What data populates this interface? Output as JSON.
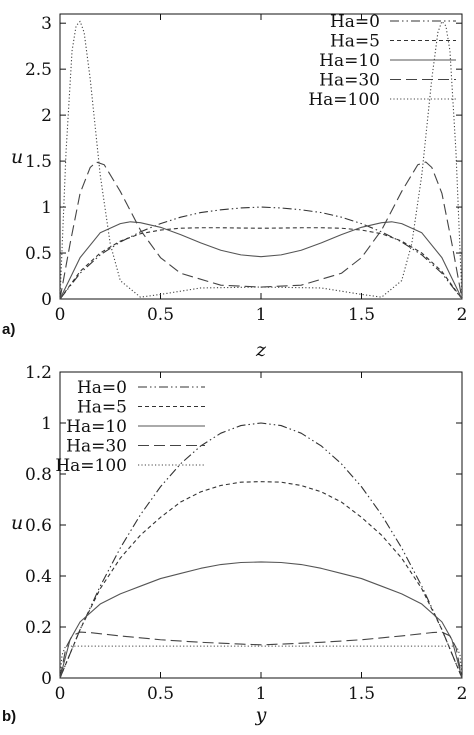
{
  "chart_data": [
    {
      "panel_label": "a)",
      "type": "line",
      "xlabel": "z",
      "ylabel": "u",
      "xlim": [
        0,
        2
      ],
      "ylim": [
        0,
        3.1
      ],
      "xticks": [
        "0",
        "0.5",
        "1",
        "1.5",
        "2"
      ],
      "yticks": [
        "0",
        "0.5",
        "1",
        "1.5",
        "2",
        "2.5",
        "3"
      ],
      "grid": false,
      "legend_position": "top-right",
      "series": [
        {
          "name": "Ha=0",
          "style": "dash-dot-dot",
          "x": [
            0,
            0.1,
            0.2,
            0.3,
            0.4,
            0.5,
            0.6,
            0.7,
            0.8,
            0.9,
            1.0,
            1.1,
            1.2,
            1.3,
            1.4,
            1.5,
            1.6,
            1.7,
            1.8,
            1.9,
            2.0
          ],
          "y": [
            0,
            0.28,
            0.48,
            0.62,
            0.73,
            0.82,
            0.89,
            0.94,
            0.97,
            0.99,
            1.0,
            0.99,
            0.97,
            0.94,
            0.89,
            0.82,
            0.73,
            0.62,
            0.48,
            0.28,
            0
          ]
        },
        {
          "name": "Ha=5",
          "style": "dashed",
          "x": [
            0,
            0.1,
            0.2,
            0.3,
            0.4,
            0.5,
            0.6,
            0.7,
            0.8,
            0.9,
            1.0,
            1.1,
            1.2,
            1.3,
            1.4,
            1.5,
            1.6,
            1.7,
            1.8,
            1.9,
            2.0
          ],
          "y": [
            0,
            0.3,
            0.5,
            0.63,
            0.71,
            0.75,
            0.77,
            0.775,
            0.775,
            0.772,
            0.77,
            0.772,
            0.775,
            0.775,
            0.77,
            0.75,
            0.71,
            0.63,
            0.5,
            0.3,
            0
          ]
        },
        {
          "name": "Ha=10",
          "style": "solid",
          "x": [
            0,
            0.1,
            0.2,
            0.3,
            0.35,
            0.4,
            0.5,
            0.6,
            0.7,
            0.8,
            0.9,
            1.0,
            1.1,
            1.2,
            1.3,
            1.4,
            1.5,
            1.6,
            1.65,
            1.7,
            1.8,
            1.9,
            2.0
          ],
          "y": [
            0,
            0.45,
            0.72,
            0.82,
            0.84,
            0.83,
            0.78,
            0.7,
            0.61,
            0.53,
            0.48,
            0.46,
            0.48,
            0.53,
            0.61,
            0.7,
            0.78,
            0.83,
            0.84,
            0.82,
            0.72,
            0.45,
            0
          ]
        },
        {
          "name": "Ha=30",
          "style": "long-dash",
          "x": [
            0,
            0.05,
            0.1,
            0.15,
            0.18,
            0.22,
            0.3,
            0.4,
            0.5,
            0.6,
            0.8,
            1.0,
            1.2,
            1.4,
            1.5,
            1.6,
            1.7,
            1.78,
            1.82,
            1.85,
            1.9,
            1.95,
            2.0
          ],
          "y": [
            0,
            0.6,
            1.15,
            1.43,
            1.49,
            1.46,
            1.17,
            0.75,
            0.45,
            0.28,
            0.15,
            0.13,
            0.15,
            0.28,
            0.45,
            0.75,
            1.17,
            1.46,
            1.49,
            1.43,
            1.15,
            0.6,
            0
          ]
        },
        {
          "name": "Ha=100",
          "style": "dotted",
          "x": [
            0,
            0.03,
            0.06,
            0.08,
            0.1,
            0.12,
            0.15,
            0.2,
            0.25,
            0.3,
            0.4,
            0.5,
            0.7,
            1.0,
            1.3,
            1.5,
            1.6,
            1.7,
            1.75,
            1.8,
            1.85,
            1.88,
            1.9,
            1.92,
            1.94,
            1.97,
            2.0
          ],
          "y": [
            0,
            1.6,
            2.7,
            2.97,
            3.02,
            2.9,
            2.4,
            1.35,
            0.6,
            0.2,
            0.02,
            0.05,
            0.12,
            0.13,
            0.12,
            0.05,
            0.02,
            0.2,
            0.6,
            1.35,
            2.4,
            2.9,
            3.02,
            2.97,
            2.7,
            1.6,
            0
          ]
        }
      ]
    },
    {
      "panel_label": "b)",
      "type": "line",
      "xlabel": "y",
      "ylabel": "u",
      "xlim": [
        0,
        2
      ],
      "ylim": [
        0,
        1.2
      ],
      "xticks": [
        "0",
        "0.5",
        "1",
        "1.5",
        "2"
      ],
      "yticks": [
        "0",
        "0.2",
        "0.4",
        "0.6",
        "0.8",
        "1",
        "1.2"
      ],
      "grid": false,
      "legend_position": "top-left",
      "series": [
        {
          "name": "Ha=0",
          "style": "dash-dot-dot",
          "x": [
            0,
            0.1,
            0.2,
            0.3,
            0.4,
            0.5,
            0.6,
            0.7,
            0.8,
            0.9,
            1.0,
            1.1,
            1.2,
            1.3,
            1.4,
            1.5,
            1.6,
            1.7,
            1.8,
            1.9,
            2.0
          ],
          "y": [
            0,
            0.19,
            0.36,
            0.51,
            0.64,
            0.75,
            0.84,
            0.91,
            0.96,
            0.99,
            1.0,
            0.99,
            0.96,
            0.91,
            0.84,
            0.75,
            0.64,
            0.51,
            0.36,
            0.19,
            0
          ]
        },
        {
          "name": "Ha=5",
          "style": "dashed",
          "x": [
            0,
            0.1,
            0.2,
            0.3,
            0.4,
            0.5,
            0.6,
            0.7,
            0.8,
            0.9,
            1.0,
            1.1,
            1.2,
            1.3,
            1.4,
            1.5,
            1.6,
            1.7,
            1.8,
            1.9,
            2.0
          ],
          "y": [
            0,
            0.19,
            0.35,
            0.47,
            0.56,
            0.63,
            0.69,
            0.73,
            0.755,
            0.768,
            0.77,
            0.768,
            0.755,
            0.73,
            0.69,
            0.63,
            0.56,
            0.47,
            0.35,
            0.19,
            0
          ]
        },
        {
          "name": "Ha=10",
          "style": "solid",
          "x": [
            0,
            0.05,
            0.1,
            0.2,
            0.3,
            0.4,
            0.5,
            0.6,
            0.7,
            0.8,
            0.9,
            1.0,
            1.1,
            1.2,
            1.3,
            1.4,
            1.5,
            1.6,
            1.7,
            1.8,
            1.9,
            1.95,
            2.0
          ],
          "y": [
            0,
            0.15,
            0.22,
            0.29,
            0.33,
            0.36,
            0.39,
            0.41,
            0.43,
            0.445,
            0.453,
            0.455,
            0.453,
            0.445,
            0.43,
            0.41,
            0.39,
            0.36,
            0.33,
            0.29,
            0.22,
            0.15,
            0
          ]
        },
        {
          "name": "Ha=30",
          "style": "long-dash",
          "x": [
            0,
            0.03,
            0.06,
            0.1,
            0.15,
            0.3,
            0.5,
            0.7,
            0.9,
            1.0,
            1.1,
            1.3,
            1.5,
            1.7,
            1.85,
            1.9,
            1.94,
            1.97,
            2.0
          ],
          "y": [
            0,
            0.12,
            0.165,
            0.18,
            0.178,
            0.165,
            0.15,
            0.14,
            0.133,
            0.13,
            0.133,
            0.14,
            0.15,
            0.165,
            0.178,
            0.18,
            0.165,
            0.12,
            0
          ]
        },
        {
          "name": "Ha=100",
          "style": "dotted",
          "x": [
            0,
            0.01,
            0.025,
            0.04,
            1.0,
            1.96,
            1.975,
            1.99,
            2.0
          ],
          "y": [
            0,
            0.09,
            0.12,
            0.125,
            0.125,
            0.125,
            0.12,
            0.09,
            0
          ]
        }
      ]
    }
  ]
}
